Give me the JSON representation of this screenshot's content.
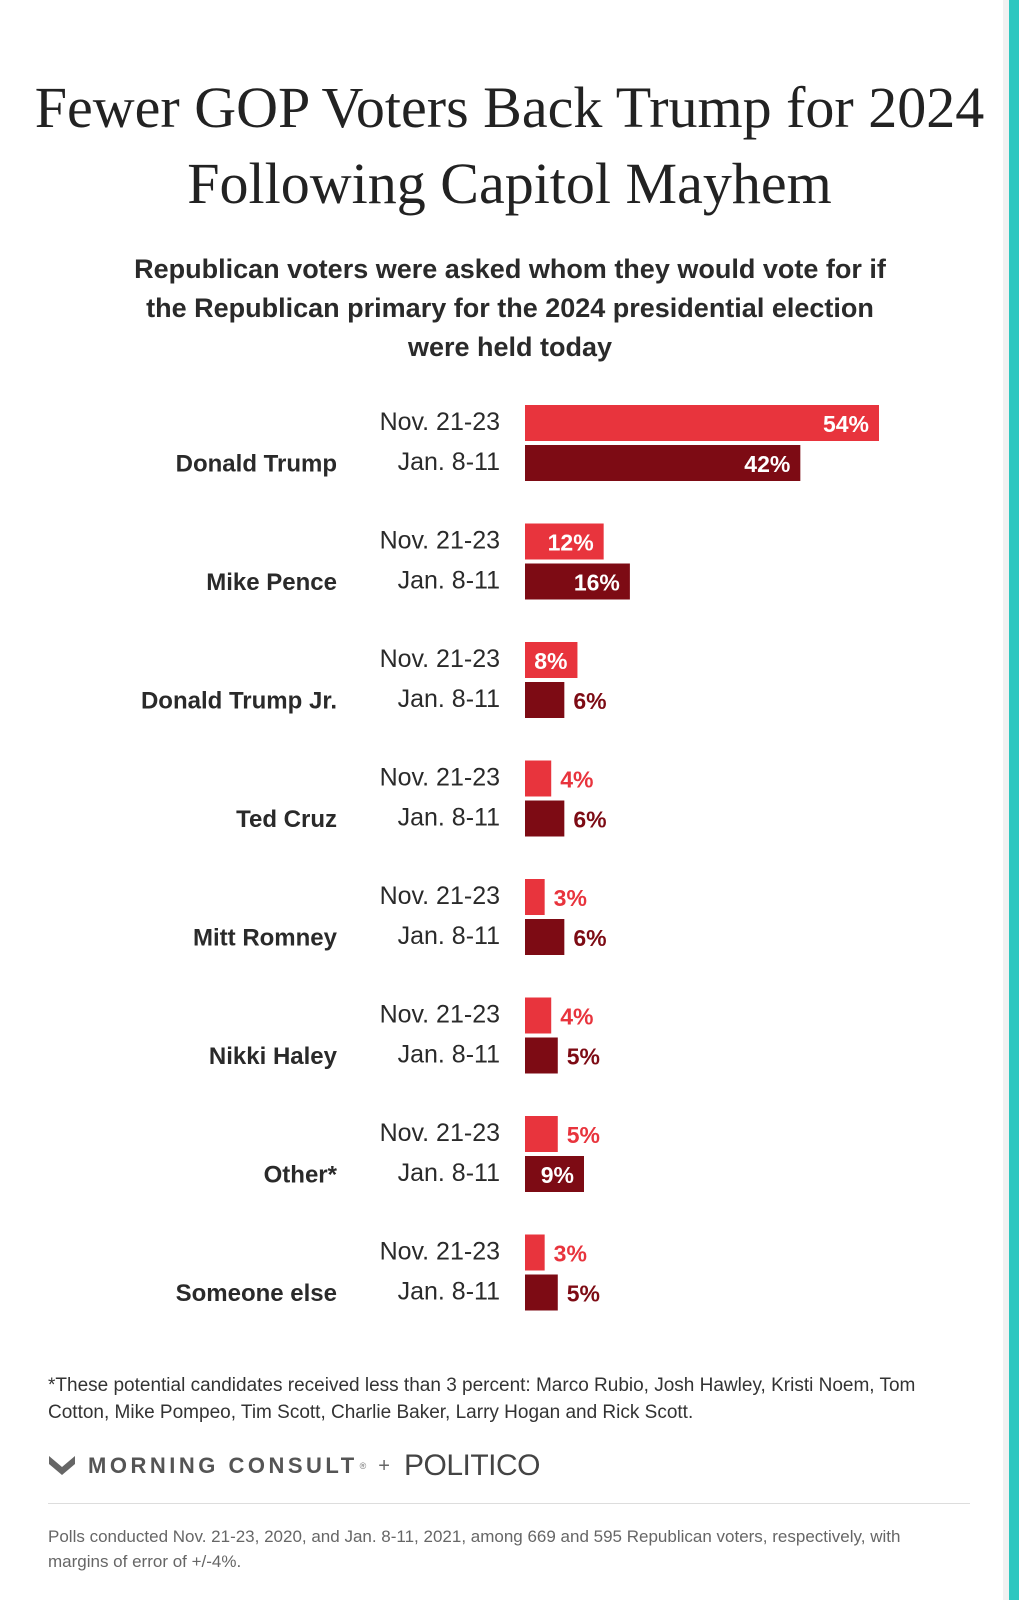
{
  "title": "Fewer GOP Voters Back Trump for 2024 Following Capitol Mayhem",
  "subtitle": "Republican voters were asked whom they would vote for if the Republican primary for the 2024 presidential election were held today",
  "colors": {
    "nov": "#e8343d",
    "jan": "#7d0b14",
    "accent": "#2ec7c0"
  },
  "chart_data": {
    "type": "bar",
    "orientation": "horizontal",
    "title": "Fewer GOP Voters Back Trump for 2024 Following Capitol Mayhem",
    "subtitle": "Republican voters were asked whom they would vote for if the Republican primary for the 2024 presidential election were held today",
    "categories": [
      "Donald Trump",
      "Mike Pence",
      "Donald Trump Jr.",
      "Ted Cruz",
      "Mitt Romney",
      "Nikki Haley",
      "Other*",
      "Someone else"
    ],
    "series": [
      {
        "name": "Nov. 21-23",
        "values": [
          54,
          12,
          8,
          4,
          3,
          4,
          5,
          3
        ]
      },
      {
        "name": "Jan. 8-11",
        "values": [
          42,
          16,
          6,
          6,
          6,
          5,
          9,
          5
        ]
      }
    ],
    "value_suffix": "%",
    "xlim": [
      0,
      54
    ]
  },
  "footnote": "*These potential candidates received less than 3 percent: Marco Rubio, Josh Hawley, Kristi Noem, Tom Cotton, Mike Pompeo, Tim Scott, Charlie Baker, Larry Hogan and Rick Scott.",
  "brand": {
    "morning_consult": "MORNING CONSULT",
    "trademark": "®",
    "plus": "+",
    "politico": "POLITICO"
  },
  "source": "Polls conducted Nov. 21-23, 2020, and Jan. 8-11, 2021, among 669 and 595 Republican voters, respectively, with margins of error of +/-4%."
}
